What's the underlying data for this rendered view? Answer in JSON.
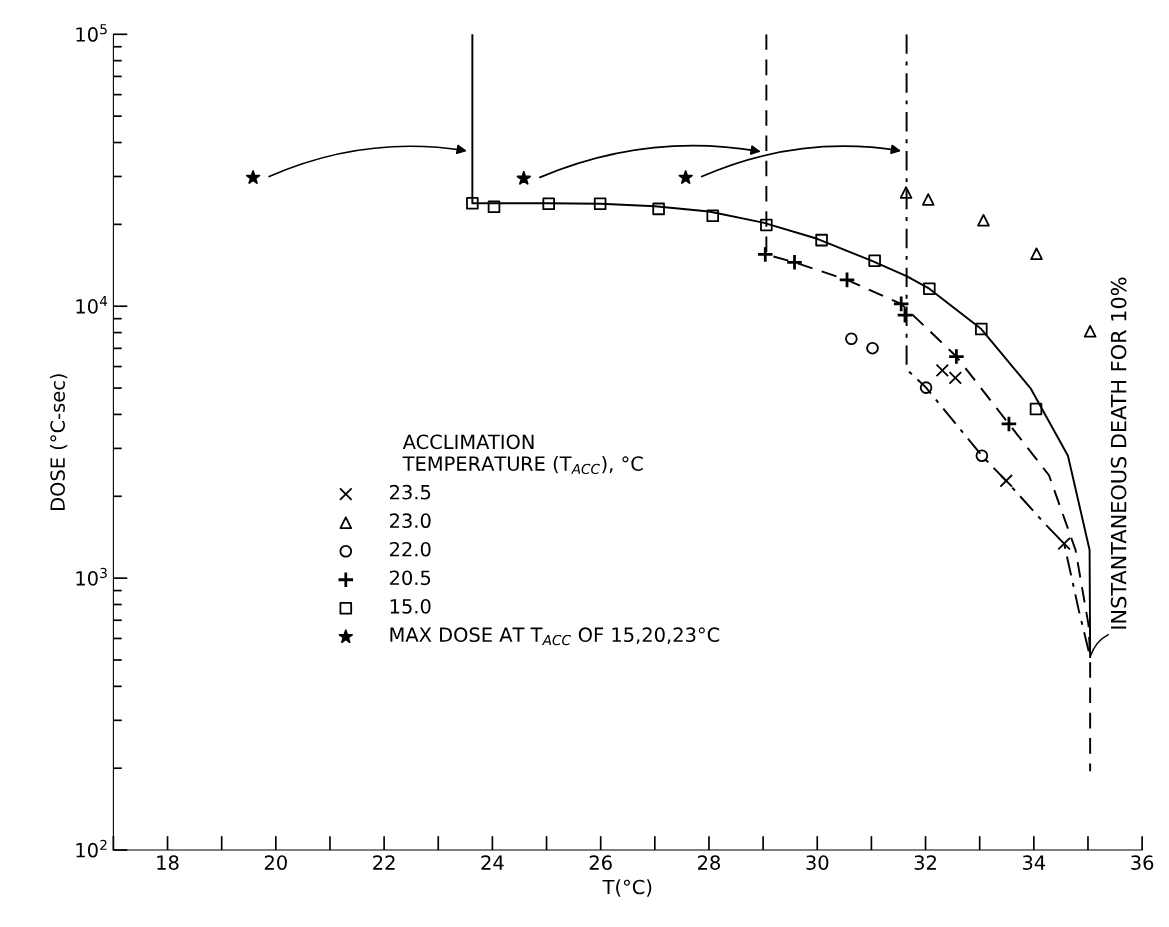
{
  "chart_data": {
    "type": "scatter",
    "xlabel": "T(°C)",
    "ylabel": "DOSE (°C-sec)",
    "legend_title": "ACCLIMATION\nTEMPERATURE (T$_{ACC}$), °C",
    "log": "y",
    "xlim": [
      17,
      36
    ],
    "ylim": [
      100,
      100000
    ],
    "xticks": [
      {
        "value": 17,
        "label": null
      },
      18,
      {
        "value": 19,
        "label": null
      },
      20,
      {
        "value": 21,
        "label": null
      },
      22,
      {
        "value": 23,
        "label": null
      },
      24,
      {
        "value": 25,
        "label": null
      },
      26,
      {
        "value": 27,
        "label": null
      },
      28,
      {
        "value": 29,
        "label": null
      },
      30,
      {
        "value": 31,
        "label": null
      },
      32,
      {
        "value": 33,
        "label": null
      },
      34,
      {
        "value": 35,
        "label": null
      },
      36
    ],
    "yticks": [
      {
        "value": 100,
        "label": "10$^{2}$"
      },
      {
        "value": 1000,
        "label": "10$^{3}$"
      },
      {
        "value": 10000,
        "label": "10$^{4}$"
      },
      {
        "value": 100000,
        "label": "10$^{5}$"
      }
    ],
    "grid": false,
    "legend": "center left",
    "series": [
      {
        "name": "23.5",
        "marker": "cross",
        "color": "#000000",
        "x": [
          32.31,
          32.55,
          33.49,
          34.56
        ],
        "values": [
          5810,
          5450,
          2280,
          1340
        ]
      },
      {
        "name": "23.0",
        "marker": "triangle",
        "color": "#000000",
        "x": [
          31.64,
          32.05,
          33.07,
          34.05,
          35.04
        ],
        "values": [
          26200,
          24700,
          20700,
          15600,
          8090
        ]
      },
      {
        "name": "22.0",
        "marker": "circle",
        "color": "#000000",
        "x": [
          30.63,
          31.02,
          32.01,
          33.04
        ],
        "values": [
          7590,
          7010,
          5020,
          2820
        ]
      },
      {
        "name": "20.5",
        "marker": "plus",
        "color": "#000000",
        "x": [
          29.04,
          29.58,
          30.55,
          31.55,
          31.62,
          32.57,
          33.54
        ],
        "values": [
          15500,
          14500,
          12500,
          10200,
          9270,
          6530,
          3690
        ]
      },
      {
        "name": "15.0",
        "marker": "square",
        "color": "#000000",
        "x": [
          23.63,
          24.03,
          25.04,
          25.99,
          27.07,
          28.07,
          29.06,
          30.08,
          31.06,
          32.07,
          33.03,
          34.04
        ],
        "values": [
          23900,
          23200,
          23800,
          23800,
          22800,
          21500,
          19900,
          17500,
          14700,
          11600,
          8240,
          4190
        ]
      },
      {
        "name": "MAX DOSE AT T$_{ACC}$ OF 15,20,23°C",
        "marker": "star",
        "color": "#000000",
        "x": [
          19.58,
          24.58,
          27.57
        ],
        "values": [
          29700,
          29500,
          29700
        ]
      },
      {
        "type": "line",
        "line_style": "solid",
        "color": "#000000",
        "x": [
          23.63,
          23.63,
          25,
          26,
          27,
          28,
          29,
          30,
          31,
          31.65,
          32.07,
          33.03,
          33.94,
          34.63,
          35.03,
          35.04
        ],
        "values": [
          100000,
          23900,
          23900,
          23800,
          23300,
          22300,
          20300,
          17700,
          14700,
          12900,
          11600,
          8240,
          4990,
          2820,
          1270,
          513
        ]
      },
      {
        "type": "line",
        "line_style": "dashed",
        "color": "#000000",
        "x": [
          29.06,
          29.06,
          29.58,
          30.55,
          31.55,
          32.57,
          33.54,
          34.28,
          34.77,
          35.01,
          35.04,
          35.04
        ],
        "values": [
          100000,
          15500,
          14500,
          12500,
          10200,
          6530,
          3690,
          2390,
          1270,
          673,
          513,
          195
        ]
      },
      {
        "type": "line",
        "line_style": "dashdot",
        "color": "#000000",
        "x": [
          31.65,
          31.65,
          32.01,
          33.04,
          33.49,
          34.21,
          34.56,
          34.83,
          35.04
        ],
        "values": [
          100000,
          5860,
          5020,
          2820,
          2280,
          1580,
          1340,
          762,
          513
        ]
      }
    ],
    "annotations": [
      {
        "text": "INSTANTANEOUS DEATH FOR 10%",
        "x": 35.04,
        "y": 513
      }
    ]
  }
}
